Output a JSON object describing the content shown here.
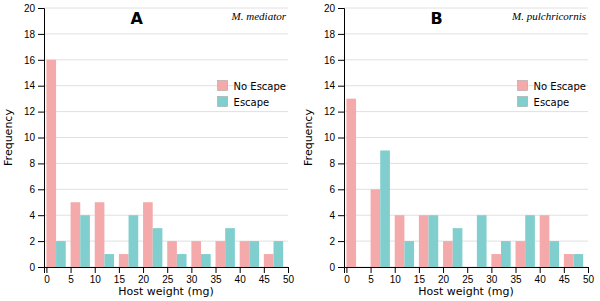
{
  "chart_data": [
    {
      "type": "histogram",
      "title": "A",
      "annotations": [
        "M. mediator"
      ],
      "x_label": "Host weight (mg)",
      "y_label": "Frequency",
      "bins": [
        0,
        5,
        10,
        15,
        20,
        25,
        30,
        35,
        40,
        45,
        50
      ],
      "series": [
        {
          "name": "No Escape",
          "color": "#F4AAAA",
          "values": [
            16,
            5,
            5,
            1,
            5,
            2,
            2,
            2,
            2,
            1
          ]
        },
        {
          "name": "Escape",
          "color": "#80CECE",
          "values": [
            2,
            4,
            1,
            4,
            3,
            1,
            1,
            3,
            2,
            2
          ]
        }
      ],
      "xlim": [
        -0.5,
        50
      ],
      "xticks": [
        0,
        5,
        10,
        15,
        20,
        25,
        30,
        35,
        40,
        45,
        50
      ],
      "ylim": [
        0,
        20
      ],
      "yticks": [
        0,
        2,
        4,
        6,
        8,
        10,
        12,
        14,
        16,
        18,
        20
      ],
      "grid": true,
      "legend": "upper right"
    },
    {
      "type": "histogram",
      "title": "B",
      "annotations": [
        "M. pulchricornis"
      ],
      "x_label": "Host weight (mg)",
      "y_label": "Frequency",
      "bins": [
        0,
        5,
        10,
        15,
        20,
        25,
        30,
        35,
        40,
        45,
        50
      ],
      "series": [
        {
          "name": "No Escape",
          "color": "#F4AAAA",
          "values": [
            13,
            6,
            4,
            4,
            2,
            0,
            1,
            2,
            4,
            1
          ]
        },
        {
          "name": "Escape",
          "color": "#80CECE",
          "values": [
            0,
            9,
            2,
            4,
            3,
            4,
            2,
            4,
            2,
            1
          ]
        }
      ],
      "xlim": [
        -0.5,
        50
      ],
      "xticks": [
        0,
        5,
        10,
        15,
        20,
        25,
        30,
        35,
        40,
        45,
        50
      ],
      "ylim": [
        0,
        20
      ],
      "yticks": [
        0,
        2,
        4,
        6,
        8,
        10,
        12,
        14,
        16,
        18,
        20
      ],
      "grid": true,
      "legend": "upper right"
    }
  ]
}
